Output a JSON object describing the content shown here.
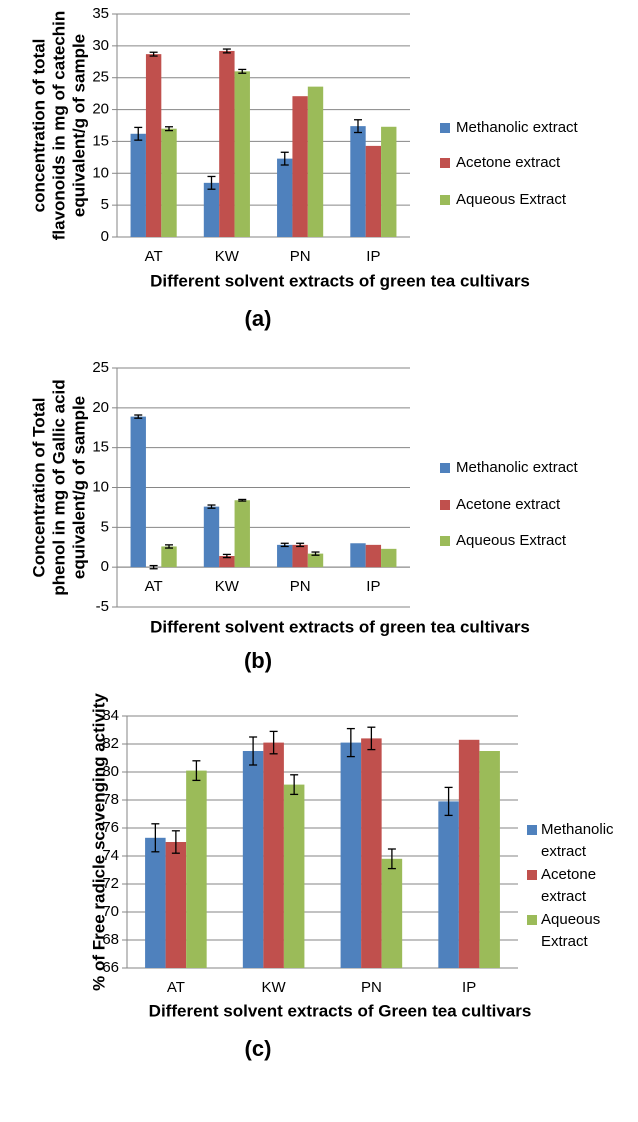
{
  "chart_data": [
    {
      "type": "bar",
      "y_label": [
        "concentration of total",
        "flavonoids in mg of catechin",
        "equivalent/g of sample"
      ],
      "x_label": "Different solvent extracts of green tea cultivars",
      "caption": "(a)",
      "categories": [
        "AT",
        "KW",
        "PN",
        "IP"
      ],
      "series": [
        {
          "name": "Methanolic extract",
          "color": "#4f81bd",
          "values": [
            16.2,
            8.5,
            12.3,
            17.4
          ],
          "errors": [
            1.0,
            1.0,
            1.0,
            1.0
          ]
        },
        {
          "name": "Acetone extract",
          "color": "#c0504d",
          "values": [
            28.7,
            29.2,
            22.1,
            14.3
          ],
          "errors": [
            0.3,
            0.3,
            null,
            null
          ]
        },
        {
          "name": "Aqueous Extract",
          "color": "#9bbb59",
          "values": [
            17.0,
            26.0,
            23.6,
            17.3
          ],
          "errors": [
            0.3,
            0.3,
            null,
            null
          ]
        }
      ],
      "ylim": [
        0,
        35
      ],
      "yticks": [
        0,
        5,
        10,
        15,
        20,
        25,
        30,
        35
      ],
      "grid": true,
      "legend": "right"
    },
    {
      "type": "bar",
      "y_label": [
        "Concentration of Total",
        "phenol in mg of Gallic acid",
        "equivalent/g of sample"
      ],
      "x_label": "Different solvent extracts of green tea cultivars",
      "caption": "(b)",
      "categories": [
        "AT",
        "KW",
        "PN",
        "IP"
      ],
      "series": [
        {
          "name": "Methanolic extract",
          "color": "#4f81bd",
          "values": [
            18.9,
            7.6,
            2.8,
            3.0
          ],
          "errors": [
            0.2,
            0.2,
            0.2,
            null
          ]
        },
        {
          "name": "Acetone extract",
          "color": "#c0504d",
          "values": [
            0.0,
            1.4,
            2.8,
            2.8
          ],
          "errors": [
            0.2,
            0.2,
            0.2,
            null
          ]
        },
        {
          "name": "Aqueous Extract",
          "color": "#9bbb59",
          "values": [
            2.6,
            8.4,
            1.7,
            2.3
          ],
          "errors": [
            0.2,
            0.1,
            0.2,
            null
          ]
        }
      ],
      "ylim": [
        -5,
        25
      ],
      "yticks": [
        -5,
        0,
        5,
        10,
        15,
        20,
        25
      ],
      "grid": true,
      "legend": "right"
    },
    {
      "type": "bar",
      "y_label": [
        "% of Free radicle scavenging activity"
      ],
      "x_label": "Different solvent extracts of Green tea cultivars",
      "caption": "(c)",
      "categories": [
        "AT",
        "KW",
        "PN",
        "IP"
      ],
      "series": [
        {
          "name": "Methanolic extract",
          "color": "#4f81bd",
          "values": [
            75.3,
            81.5,
            82.1,
            77.9
          ],
          "errors": [
            1.0,
            1.0,
            1.0,
            1.0
          ]
        },
        {
          "name": "Acetone extract",
          "color": "#c0504d",
          "values": [
            75.0,
            82.1,
            82.4,
            82.3
          ],
          "errors": [
            0.8,
            0.8,
            0.8,
            null
          ]
        },
        {
          "name": "Aqueous Extract",
          "color": "#9bbb59",
          "values": [
            80.1,
            79.1,
            73.8,
            81.5
          ],
          "errors": [
            0.7,
            0.7,
            0.7,
            null
          ]
        }
      ],
      "ylim": [
        66,
        84
      ],
      "yticks": [
        66,
        68,
        70,
        72,
        74,
        76,
        78,
        80,
        82,
        84
      ],
      "grid": true,
      "legend": "right"
    }
  ]
}
